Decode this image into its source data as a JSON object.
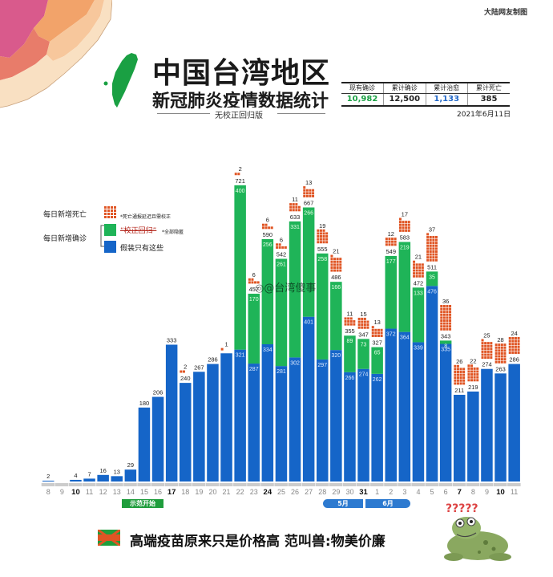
{
  "credit": "大陆网友制图",
  "header": {
    "title": "中国台湾地区",
    "subtitle": "新冠肺炎疫情数据统计",
    "tag": "无校正回归版"
  },
  "stats": {
    "headers": [
      "现有确诊",
      "累计确诊",
      "累计治愈",
      "累计死亡"
    ],
    "values": [
      "10,982",
      "12,500",
      "1,133",
      "385"
    ],
    "date": "2021年6月11日"
  },
  "legend": {
    "deaths_label": "每日新增死亡",
    "deaths_note": "*死亡通报延迟且需校正",
    "confirmed_label": "每日新增确诊",
    "struck_text": "“校正回归”",
    "confirmed_note": "*全部隐匿",
    "pretend_label": "假装只有这些"
  },
  "watermark": "@台湾傻事",
  "month_markers": {
    "may": "5月",
    "june": "6月",
    "demo": "示范开始"
  },
  "bottom_title": "高端疫苗原来只是价格高 范叫兽:物美价廉",
  "colors": {
    "blue": "#1565c8",
    "green": "#1fb458",
    "red": "#e05524",
    "axis": "#cccccc"
  },
  "chart_data": {
    "type": "bar",
    "x": [
      "8",
      "9",
      "10",
      "11",
      "12",
      "13",
      "14",
      "15",
      "16",
      "17",
      "18",
      "19",
      "20",
      "21",
      "22",
      "23",
      "24",
      "25",
      "26",
      "27",
      "28",
      "29",
      "30",
      "31",
      "1",
      "2",
      "3",
      "4",
      "5",
      "6",
      "7",
      "8",
      "9",
      "10",
      "11"
    ],
    "bold_days": [
      "10",
      "17",
      "24",
      "31",
      "7"
    ],
    "series": [
      {
        "name": "假装只有这些",
        "values": [
          2,
          0,
          4,
          7,
          16,
          13,
          29,
          180,
          206,
          333,
          240,
          267,
          286,
          312,
          321,
          287,
          334,
          281,
          302,
          401,
          297,
          320,
          266,
          274,
          262,
          372,
          364,
          339,
          476,
          335,
          211,
          219,
          274,
          263,
          286
        ]
      },
      {
        "name": "每日新增确诊",
        "values": [
          0,
          0,
          0,
          0,
          0,
          0,
          0,
          0,
          0,
          0,
          0,
          0,
          0,
          0,
          400,
          170,
          256,
          261,
          331,
          266,
          258,
          166,
          89,
          73,
          65,
          177,
          219,
          133,
          35,
          8,
          0,
          0,
          0,
          0,
          0
        ]
      },
      {
        "name": "每日新增死亡",
        "values": [
          0,
          0,
          0,
          0,
          0,
          0,
          0,
          0,
          0,
          0,
          2,
          0,
          0,
          1,
          2,
          6,
          6,
          6,
          11,
          13,
          19,
          21,
          11,
          15,
          13,
          12,
          17,
          21,
          37,
          36,
          26,
          22,
          25,
          28,
          24
        ]
      }
    ],
    "total_labels": [
      2,
      "",
      4,
      7,
      16,
      13,
      29,
      180,
      206,
      333,
      240,
      267,
      286,
      "",
      721,
      457,
      590,
      542,
      633,
      667,
      555,
      486,
      355,
      347,
      327,
      549,
      583,
      472,
      511,
      343,
      211,
      219,
      274,
      263,
      286
    ],
    "ylim": [
      0,
      760
    ]
  }
}
